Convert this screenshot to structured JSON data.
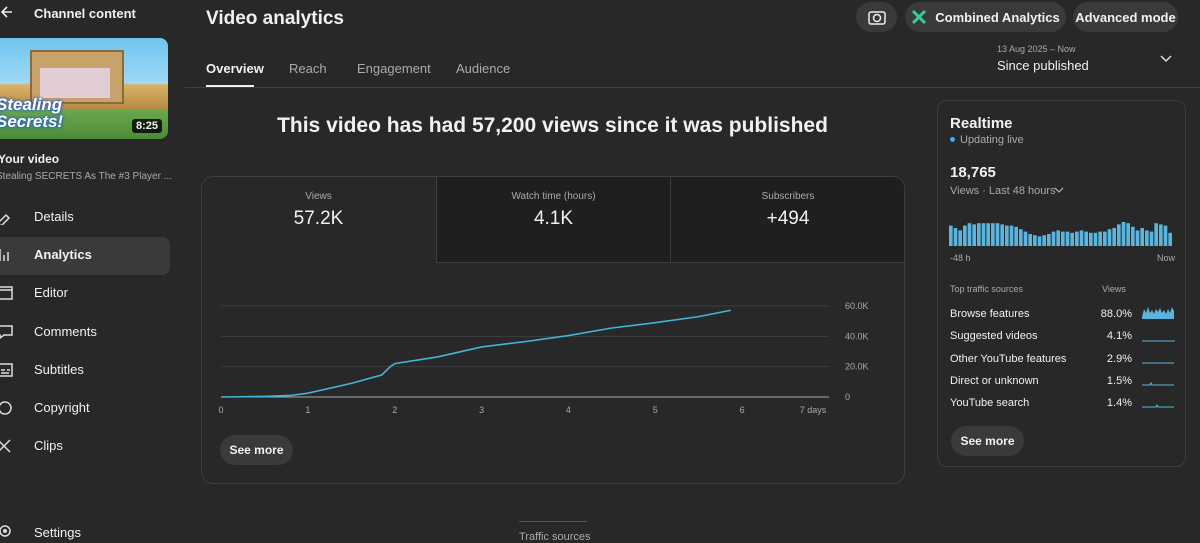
{
  "sidebar": {
    "title": "Channel content",
    "thumbnail": {
      "text": "Stealing Secrets!",
      "duration": "8:25"
    },
    "video_label": "Your video",
    "video_title": "Stealing SECRETS As The #3 Player ...",
    "nav": [
      "Details",
      "Analytics",
      "Editor",
      "Comments",
      "Subtitles",
      "Copyright",
      "Clips"
    ],
    "settings": "Settings"
  },
  "header": {
    "title": "Video analytics",
    "buttons": [
      "Combined Analytics",
      "Advanced mode"
    ]
  },
  "tabs": [
    "Overview",
    "Reach",
    "Engagement",
    "Audience"
  ],
  "date_range": {
    "range": "13 Aug 2025 – Now",
    "label": "Since published"
  },
  "headline": "This video has had 57,200 views since it was published",
  "metrics": [
    {
      "label": "Views",
      "value": "57.2K"
    },
    {
      "label": "Watch time (hours)",
      "value": "4.1K"
    },
    {
      "label": "Subscribers",
      "value": "+494"
    }
  ],
  "chart_data": {
    "type": "line",
    "color": "#41b4d9",
    "x": [
      0,
      0.5,
      0.8,
      1,
      1.5,
      1.85,
      1.95,
      2,
      2.5,
      3,
      3.5,
      4,
      4.5,
      5,
      5.5,
      5.87
    ],
    "values": [
      0,
      400,
      1000,
      2500,
      9000,
      14500,
      20000,
      22000,
      26500,
      33000,
      36500,
      40500,
      45500,
      49000,
      53000,
      57200
    ],
    "xlim": [
      0,
      7
    ],
    "ylim": [
      0,
      60000
    ],
    "xticks": [
      0,
      1,
      2,
      3,
      4,
      5,
      6,
      {
        "value": 7,
        "label": "7 days"
      }
    ],
    "yticks": [
      0,
      {
        "value": 20000,
        "label": "20.0K"
      },
      {
        "value": 40000,
        "label": "40.0K"
      },
      {
        "value": 60000,
        "label": "60.0K"
      }
    ],
    "grid": true,
    "button": "See more"
  },
  "realtime": {
    "title": "Realtime",
    "status": "Updating live",
    "value": "18,765",
    "period": "Views · Last 48 hours",
    "chart": {
      "type": "bar",
      "color": "#5ab4dc",
      "values": [
        459,
        405,
        351,
        459,
        513,
        486,
        513,
        513,
        513,
        513,
        513,
        486,
        459,
        459,
        432,
        378,
        324,
        270,
        243,
        216,
        243,
        270,
        324,
        351,
        324,
        324,
        297,
        324,
        351,
        324,
        297,
        297,
        324,
        324,
        378,
        405,
        486,
        540,
        513,
        432,
        351,
        405,
        351,
        324,
        513,
        486,
        459,
        297
      ]
    },
    "start": "-48 h",
    "end": "Now",
    "sources_title": "Top traffic sources",
    "sources_column": "Views",
    "sources": [
      {
        "name": "Browse features",
        "share": "88.0%"
      },
      {
        "name": "Suggested videos",
        "share": "4.1%"
      },
      {
        "name": "Other YouTube features",
        "share": "2.9%"
      },
      {
        "name": "Direct or unknown",
        "share": "1.5%"
      },
      {
        "name": "YouTube search",
        "share": "1.4%"
      }
    ],
    "button": "See more"
  },
  "footer": "Traffic sources"
}
